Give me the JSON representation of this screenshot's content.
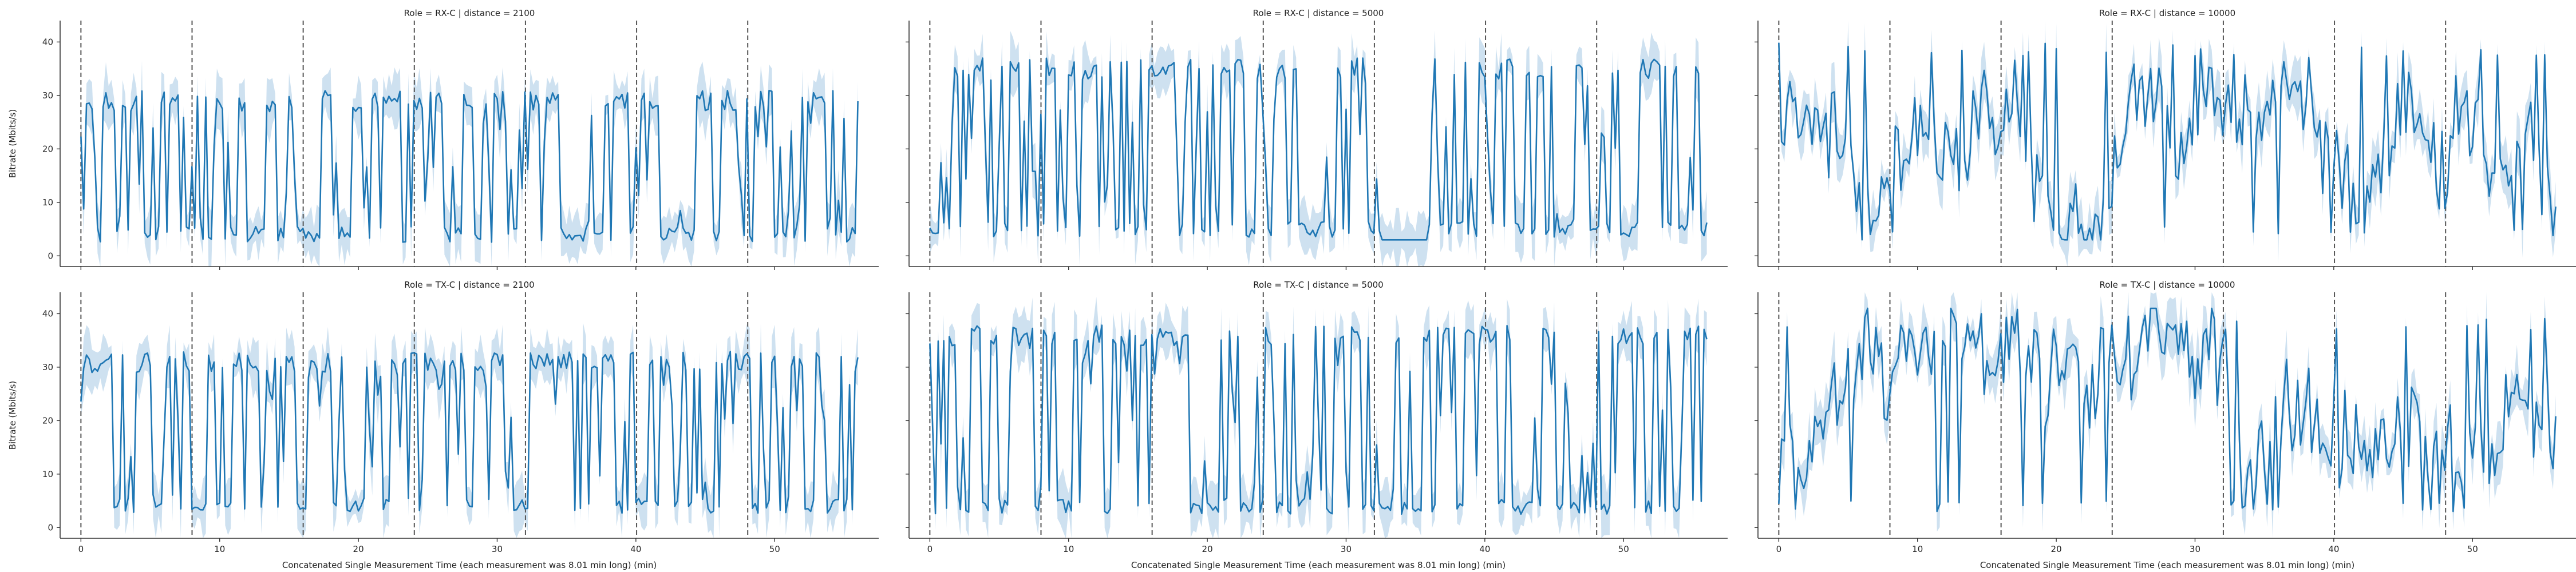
{
  "figure": {
    "xlabel": "Concatenated Single Measurement Time (each measurement was 8.01 min long) (min)",
    "ylabel": "Bitrate (Mbits/s)",
    "line_color": "#1f77b4",
    "band_color": "#aecde6",
    "vline_color": "#555555",
    "axis_color": "#333333"
  },
  "chart_data": {
    "type": "line",
    "layout": "3 columns x 2 rows facet grid (shared axes)",
    "x_range": [
      -1.5,
      57.5
    ],
    "y_range": [
      -2,
      44
    ],
    "x_ticks": [
      0,
      10,
      20,
      30,
      40,
      50
    ],
    "y_ticks": [
      0,
      10,
      20,
      30,
      40
    ],
    "vlines_x": [
      0,
      8.01,
      16.02,
      24.03,
      32.04,
      40.05,
      48.06
    ],
    "x_end": 56,
    "panels": [
      {
        "title": "Role = RX-C | distance = 2100",
        "row": 0,
        "col": 0,
        "seed": 11,
        "min": 3,
        "max": 30,
        "style": "bimodal"
      },
      {
        "title": "Role = RX-C | distance = 5000",
        "row": 0,
        "col": 1,
        "seed": 23,
        "min": 4,
        "max": 36,
        "style": "bimodal-gap"
      },
      {
        "title": "Role = RX-C | distance = 10000",
        "row": 0,
        "col": 2,
        "seed": 37,
        "min": 4,
        "max": 40,
        "style": "noisy"
      },
      {
        "title": "Role = TX-C | distance = 2100",
        "row": 1,
        "col": 0,
        "seed": 41,
        "min": 3,
        "max": 32,
        "style": "bimodal"
      },
      {
        "title": "Role = TX-C | distance = 5000",
        "row": 1,
        "col": 1,
        "seed": 53,
        "min": 3,
        "max": 37,
        "style": "bimodal"
      },
      {
        "title": "Role = TX-C | distance = 10000",
        "row": 1,
        "col": 2,
        "seed": 67,
        "min": 3,
        "max": 40,
        "style": "noisy-high"
      }
    ]
  }
}
